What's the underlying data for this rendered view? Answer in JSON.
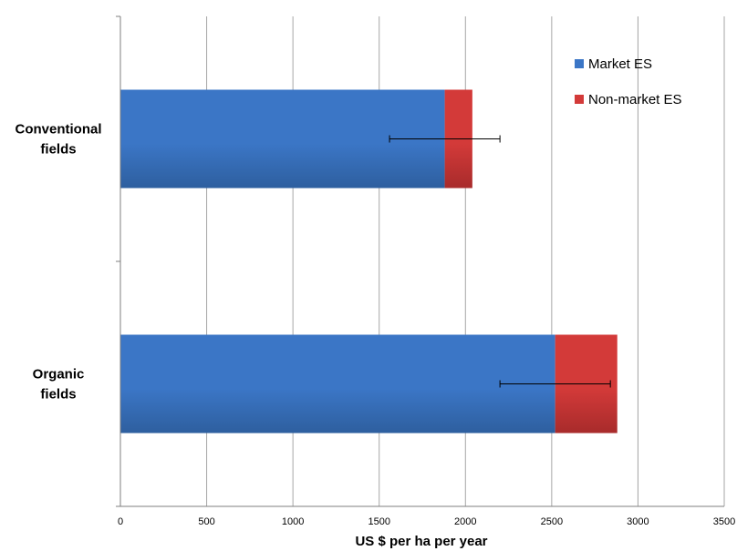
{
  "chart_data": {
    "type": "bar",
    "orientation": "horizontal",
    "stacked": true,
    "categories": [
      "Conventional fields",
      "Organic fields"
    ],
    "category_lines": [
      [
        "Conventional",
        "fields"
      ],
      [
        "Organic",
        "fields"
      ]
    ],
    "series": [
      {
        "name": "Market ES",
        "values": [
          1880,
          2520
        ],
        "color": "#3b76c6",
        "color_dark": "#2e5f9f"
      },
      {
        "name": "Non-market ES",
        "values": [
          160,
          360
        ],
        "color": "#d33a39",
        "color_dark": "#a82b2b"
      }
    ],
    "error_bars": [
      {
        "low": 1560,
        "high": 2200
      },
      {
        "low": 2200,
        "high": 2840
      }
    ],
    "xlabel": "US $ per ha per year",
    "ylabel": "",
    "xlim": [
      0,
      3500
    ],
    "xticks": [
      0,
      500,
      1000,
      1500,
      2000,
      2500,
      3000,
      3500
    ],
    "xtick_labels": [
      "0",
      "500",
      "1000",
      "1500",
      "2000",
      "2500",
      "3000",
      "3500"
    ],
    "grid": "vertical",
    "legend_position": "top-right"
  }
}
